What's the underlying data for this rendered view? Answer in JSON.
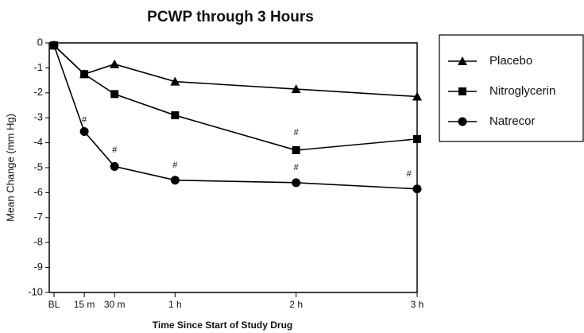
{
  "chart_data": {
    "type": "line",
    "title": "PCWP through 3 Hours",
    "x_label": "Time Since Start of Study Drug",
    "y_label": "Mean Change (mm Hg)",
    "x": [
      0,
      15,
      30,
      60,
      120,
      180
    ],
    "xlim": [
      0,
      180
    ],
    "xticks": [
      {
        "value": 0,
        "label": "BL"
      },
      {
        "value": 15,
        "label": "15 m"
      },
      {
        "value": 30,
        "label": "30 m"
      },
      {
        "value": 60,
        "label": "1 h"
      },
      {
        "value": 120,
        "label": "2 h"
      },
      {
        "value": 180,
        "label": "3 h"
      }
    ],
    "ylim": [
      -10,
      0
    ],
    "yticks": [
      -10,
      -9,
      -8,
      -7,
      -6,
      -5,
      -4,
      -3,
      -2,
      -1,
      0
    ],
    "grid": false,
    "legend": "right",
    "series": [
      {
        "name": "Placebo",
        "color": "#000000",
        "marker": "triangle",
        "values": [
          -0.1,
          -1.25,
          -0.85,
          -1.55,
          -1.85,
          -2.15
        ]
      },
      {
        "name": "Nitroglycerin",
        "color": "#000000",
        "marker": "square",
        "values": [
          -0.1,
          -1.25,
          -2.05,
          -2.9,
          -4.3,
          -3.85
        ]
      },
      {
        "name": "Natrecor",
        "color": "#000000",
        "marker": "circle",
        "values": [
          -0.1,
          -3.55,
          -4.95,
          -5.5,
          -5.6,
          -5.85
        ]
      }
    ],
    "annotations": [
      {
        "text": "#",
        "x": 15,
        "y": -3.1
      },
      {
        "text": "#",
        "x": 30,
        "y": -4.3
      },
      {
        "text": "#",
        "x": 60,
        "y": -4.9
      },
      {
        "text": "#",
        "x": 120,
        "y": -3.6
      },
      {
        "text": "#",
        "x": 120,
        "y": -5.0
      },
      {
        "text": "#",
        "x": 176,
        "y": -5.25
      }
    ]
  }
}
